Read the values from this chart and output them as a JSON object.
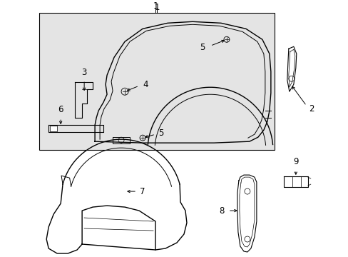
{
  "bg_color": "#ffffff",
  "box_bg": "#e4e4e4",
  "line_color": "#000000",
  "font_size": 8.5
}
